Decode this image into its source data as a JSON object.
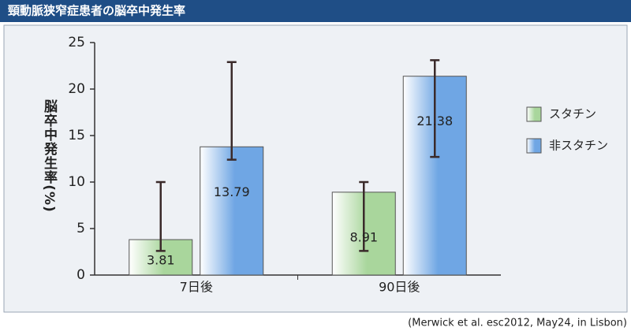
{
  "chart_data": {
    "type": "bar",
    "title": "頸動脈狭窄症患者の脳卒中発生率",
    "y_label": "脳卒中発生率(%)",
    "categories": [
      "7日後",
      "90日後"
    ],
    "series": [
      {
        "name": "スタチン",
        "color": "#a9d69c",
        "values": [
          3.81,
          8.91
        ],
        "error_lower": [
          2.6,
          2.6
        ],
        "error_upper": [
          10.0,
          10.0
        ]
      },
      {
        "name": "非スタチン",
        "color": "#6fa6e4",
        "values": [
          13.79,
          21.38
        ],
        "error_lower": [
          12.4,
          12.7
        ],
        "error_upper": [
          22.9,
          23.1
        ]
      }
    ],
    "ylim": [
      0,
      25
    ],
    "yticks": [
      0,
      5,
      10,
      15,
      20,
      25
    ],
    "grid": false,
    "legend": "right",
    "source": "(Merwick et al. esc2012, May24, in Lisbon)"
  }
}
